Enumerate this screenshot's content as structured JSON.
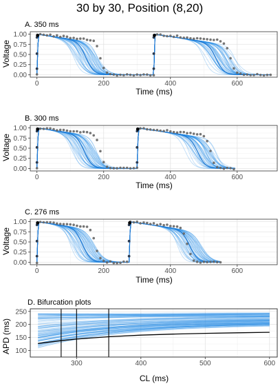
{
  "figure": {
    "title": "30 by 30, Position (8,20)"
  },
  "colors": {
    "band": "#1e88e5",
    "mean": "#1e78d2",
    "dots": "#666666",
    "bif_black": "#000000"
  },
  "chart_data": [
    {
      "type": "line",
      "panel_title": "A. 350 ms",
      "xlabel": "Time (ms)",
      "ylabel": "Voltage",
      "xlim": [
        -20,
        720
      ],
      "ylim": [
        -0.06,
        1.06
      ],
      "xticks": [
        0,
        200,
        400,
        600
      ],
      "yticks": [
        "0.00",
        "0.25",
        "0.50",
        "0.75",
        "1.00"
      ],
      "cl": 350,
      "beats": 2,
      "band_apd": [
        110,
        185
      ],
      "data_apd": 190,
      "data_points_end": 700
    },
    {
      "type": "line",
      "panel_title": "B. 300 ms",
      "xlabel": "Time (ms)",
      "ylabel": "Voltage",
      "xlim": [
        -20,
        720
      ],
      "ylim": [
        -0.06,
        1.06
      ],
      "xticks": [
        0,
        200,
        400,
        600
      ],
      "yticks": [
        "0.00",
        "0.25",
        "0.50",
        "0.75",
        "1.00"
      ],
      "cl": 300,
      "beats": 2,
      "band_apd": [
        105,
        180
      ],
      "data_apd": 190,
      "data_points_end": 595
    },
    {
      "type": "line",
      "panel_title": "C. 276 ms",
      "xlabel": "Time (ms)",
      "ylabel": "Voltage",
      "xlim": [
        -20,
        720
      ],
      "ylim": [
        -0.06,
        1.06
      ],
      "xticks": [
        0,
        200,
        400,
        600
      ],
      "yticks": [
        "0.00",
        "0.25",
        "0.50",
        "0.75",
        "1.00"
      ],
      "cl": 276,
      "beats": 2,
      "band_apd": [
        100,
        175
      ],
      "data_apd": 175,
      "data_points_end": 550
    },
    {
      "type": "line",
      "panel_title": "D. Bifurcation plots",
      "xlabel": "CL (ms)",
      "ylabel": "APD (ms)",
      "xlim": [
        228,
        612
      ],
      "ylim": [
        75,
        260
      ],
      "xticks": [
        300,
        400,
        500,
        600
      ],
      "yticks": [
        100,
        150,
        200,
        250
      ],
      "vlines": [
        276,
        300,
        350
      ],
      "black_curve": {
        "x": [
          240,
          276,
          300,
          350,
          400,
          450,
          500,
          550,
          600
        ],
        "y": [
          127,
          138,
          144,
          153,
          159,
          163,
          166,
          168,
          170
        ]
      },
      "band_start_range": [
        110,
        245
      ],
      "band_end_range": [
        168,
        245
      ]
    }
  ]
}
